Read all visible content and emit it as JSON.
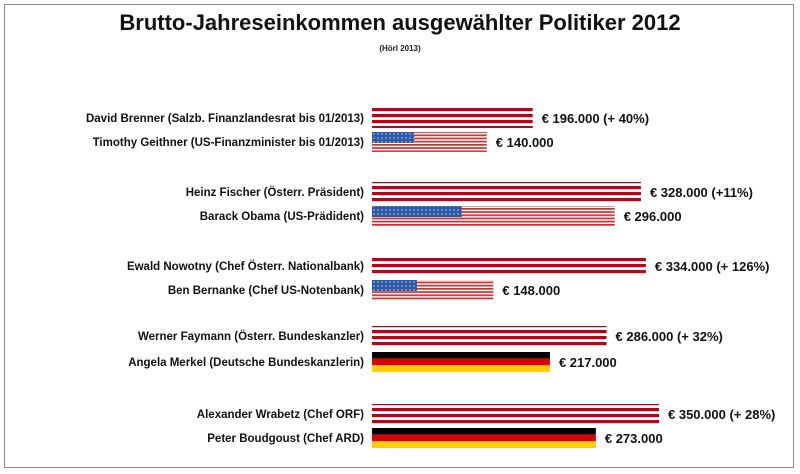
{
  "header": {
    "title": "Brutto-Jahreseinkommen ausgewählter Politiker 2012",
    "subtitle": "(Hörl 2013)"
  },
  "chart_data": {
    "type": "bar",
    "orientation": "horizontal",
    "title": "Brutto-Jahreseinkommen ausgewählter Politiker 2012",
    "subtitle": "(Hörl 2013)",
    "xlabel": "",
    "ylabel": "",
    "xlim": [
      0,
      420000
    ],
    "grid": false,
    "legend": "none",
    "colors": {
      "austria_red": "#c0001a",
      "us_blue": "#2b5aa6",
      "us_red": "#d03030",
      "de_black": "#000000",
      "de_red": "#dd0000",
      "de_gold": "#ffce00"
    },
    "bars": [
      {
        "label": "David Brenner (Salzb. Finanzlandesrat bis 01/2013)",
        "value": 196000,
        "value_label": "€ 196.000 (+ 40%)",
        "flag": "austria"
      },
      {
        "label": "Timothy Geithner (US-Finanzminister bis 01/2013)",
        "value": 140000,
        "value_label": "€ 140.000",
        "flag": "usa"
      },
      {
        "label": "Heinz Fischer (Österr. Präsident)",
        "value": 328000,
        "value_label": "€ 328.000 (+11%)",
        "flag": "austria"
      },
      {
        "label": "Barack Obama (US-Prädident)",
        "value": 296000,
        "value_label": "€ 296.000",
        "flag": "usa"
      },
      {
        "label": "Ewald Nowotny (Chef Österr. Nationalbank)",
        "value": 334000,
        "value_label": "€ 334.000 (+ 126%)",
        "flag": "austria"
      },
      {
        "label": "Ben Bernanke (Chef US-Notenbank)",
        "value": 148000,
        "value_label": "€ 148.000",
        "flag": "usa"
      },
      {
        "label": "Werner Faymann (Österr. Bundeskanzler)",
        "value": 286000,
        "value_label": "€ 286.000 (+ 32%)",
        "flag": "austria"
      },
      {
        "label": "Angela Merkel (Deutsche Bundeskanzlerin)",
        "value": 217000,
        "value_label": "€ 217.000",
        "flag": "germany"
      },
      {
        "label": "Alexander Wrabetz (Chef ORF)",
        "value": 350000,
        "value_label": "€ 350.000 (+ 28%)",
        "flag": "austria"
      },
      {
        "label": "Peter Boudgoust (Chef ARD)",
        "value": 273000,
        "value_label": "€ 273.000",
        "flag": "germany"
      }
    ]
  }
}
